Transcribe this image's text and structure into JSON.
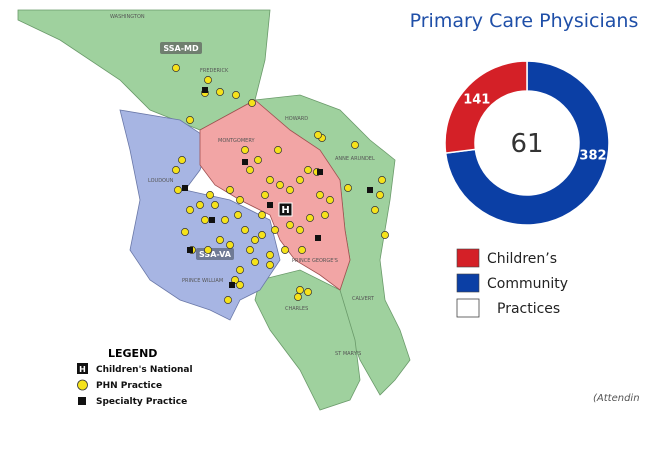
{
  "chart_data": {
    "type": "donut",
    "title": "Primary Care Physicians",
    "categories": [
      "Children’s",
      "Community"
    ],
    "values": [
      141,
      382
    ],
    "colors": [
      "#d42027",
      "#0b3fa5"
    ],
    "center_value": 61,
    "center_label": "Practices"
  },
  "map": {
    "regions": [
      "SSA-MD",
      "SSA-VA"
    ],
    "counties": [
      "WASHINGTON",
      "FREDERICK",
      "MONTGOMERY",
      "HOWARD",
      "ANNE ARUNDEL",
      "LOUDOUN",
      "PRINCE WILLIAM",
      "PRINCE GEORGE'S",
      "CALVERT",
      "CHARLES",
      "ST MARY'S"
    ],
    "marker": "H",
    "legend": {
      "title": "LEGEND",
      "items": [
        "Children's National",
        "PHN Practice",
        "Specialty Practice"
      ]
    }
  },
  "footnote": "(Attendin"
}
